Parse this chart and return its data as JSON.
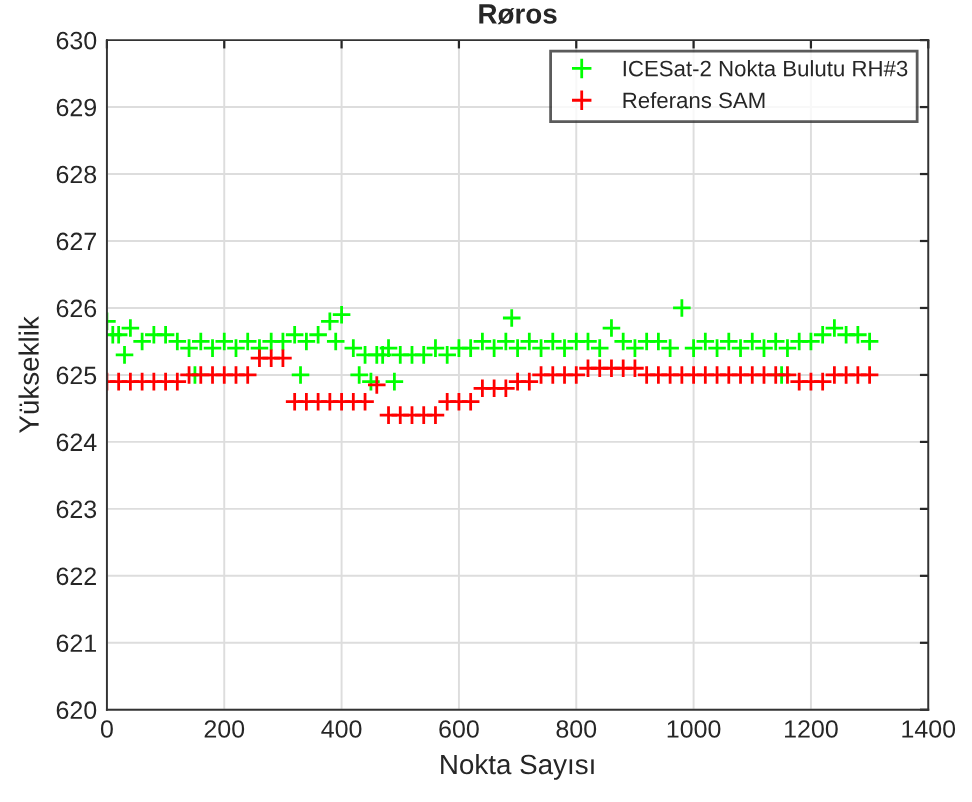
{
  "chart_data": {
    "type": "scatter",
    "title": "Røros",
    "xlabel": "Nokta Sayısı",
    "ylabel": "Yükseklik",
    "xlim": [
      0,
      1400
    ],
    "xticks": [
      0,
      200,
      400,
      600,
      800,
      1000,
      1200,
      1400
    ],
    "ylim": [
      620,
      630
    ],
    "yticks": [
      620,
      621,
      622,
      623,
      624,
      625,
      626,
      627,
      628,
      629,
      630
    ],
    "grid": true,
    "legend": "top right",
    "marker": "cross",
    "series": [
      {
        "name": "ICESat-2 Nokta Bulutu RH#3",
        "color": "#00ff00",
        "x": [
          0,
          10,
          20,
          40,
          60,
          80,
          100,
          120,
          140,
          160,
          180,
          200,
          220,
          240,
          260,
          280,
          300,
          320,
          340,
          360,
          380,
          390,
          400,
          420,
          440,
          460,
          470,
          480,
          490,
          500,
          520,
          540,
          560,
          580,
          600,
          620,
          640,
          660,
          680,
          690,
          700,
          720,
          740,
          760,
          780,
          800,
          820,
          840,
          860,
          880,
          900,
          920,
          940,
          960,
          980,
          1000,
          1020,
          1040,
          1060,
          1080,
          1100,
          1120,
          1140,
          1160,
          1180,
          1200,
          1220,
          1240,
          1260,
          1280,
          1300,
          30,
          150,
          330,
          430,
          450,
          1150
        ],
        "values": [
          625.8,
          625.6,
          625.6,
          625.7,
          625.5,
          625.6,
          625.6,
          625.5,
          625.4,
          625.5,
          625.4,
          625.5,
          625.4,
          625.5,
          625.4,
          625.5,
          625.5,
          625.6,
          625.5,
          625.6,
          625.8,
          625.5,
          625.9,
          625.4,
          625.3,
          625.3,
          625.3,
          625.4,
          624.9,
          625.3,
          625.3,
          625.3,
          625.4,
          625.3,
          625.4,
          625.4,
          625.5,
          625.4,
          625.5,
          625.85,
          625.4,
          625.5,
          625.4,
          625.5,
          625.4,
          625.5,
          625.5,
          625.4,
          625.7,
          625.5,
          625.4,
          625.5,
          625.5,
          625.4,
          626.0,
          625.4,
          625.5,
          625.4,
          625.5,
          625.4,
          625.5,
          625.4,
          625.5,
          625.4,
          625.5,
          625.5,
          625.6,
          625.7,
          625.6,
          625.6,
          625.5,
          625.3,
          625.0,
          625.0,
          625.0,
          624.9,
          625.0
        ]
      },
      {
        "name": "Referans SAM",
        "color": "#ff0000",
        "x": [
          0,
          20,
          40,
          60,
          80,
          100,
          120,
          140,
          160,
          180,
          200,
          220,
          240,
          260,
          280,
          300,
          320,
          340,
          360,
          380,
          400,
          420,
          440,
          460,
          480,
          500,
          520,
          540,
          560,
          580,
          600,
          620,
          640,
          660,
          680,
          700,
          720,
          740,
          760,
          780,
          800,
          820,
          840,
          860,
          880,
          900,
          920,
          940,
          960,
          980,
          1000,
          1020,
          1040,
          1060,
          1080,
          1100,
          1120,
          1140,
          1160,
          1180,
          1200,
          1220,
          1240,
          1260,
          1280,
          1300
        ],
        "values": [
          624.9,
          624.9,
          624.9,
          624.9,
          624.9,
          624.9,
          624.9,
          625.0,
          625.0,
          625.0,
          625.0,
          625.0,
          625.0,
          625.25,
          625.25,
          625.25,
          624.6,
          624.6,
          624.6,
          624.6,
          624.6,
          624.6,
          624.6,
          624.85,
          624.4,
          624.4,
          624.4,
          624.4,
          624.4,
          624.6,
          624.6,
          624.6,
          624.8,
          624.8,
          624.8,
          624.9,
          624.9,
          625.0,
          625.0,
          625.0,
          625.0,
          625.1,
          625.1,
          625.1,
          625.1,
          625.1,
          625.0,
          625.0,
          625.0,
          625.0,
          625.0,
          625.0,
          625.0,
          625.0,
          625.0,
          625.0,
          625.0,
          625.0,
          625.0,
          624.9,
          624.9,
          624.9,
          625.0,
          625.0,
          625.0,
          625.0
        ]
      }
    ]
  }
}
